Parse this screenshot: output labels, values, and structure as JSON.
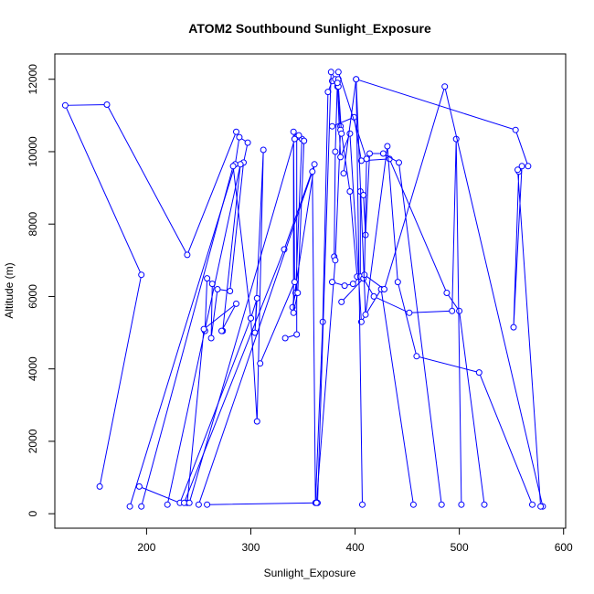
{
  "chart_data": {
    "type": "line",
    "title": "ATOM2 Southbound Sunlight_Exposure",
    "xlabel": "Sunlight_Exposure",
    "ylabel": "Altitude (m)",
    "xlim": [
      112,
      602
    ],
    "ylim": [
      -400,
      12700
    ],
    "x_ticks": [
      200,
      300,
      400,
      500,
      600
    ],
    "y_ticks": [
      0,
      2000,
      4000,
      6000,
      8000,
      10000,
      12000
    ],
    "x_tick_labels": [
      "200",
      "300",
      "400",
      "500",
      "600"
    ],
    "y_tick_labels": [
      "0",
      "2000",
      "4000",
      "6000",
      "8000",
      "10000",
      "12000"
    ],
    "series_color": "#0000ff",
    "marker": "open-circle",
    "grid": false,
    "series": [
      {
        "x": [
          155,
          195,
          122,
          162,
          239,
          286
        ],
        "y": [
          750,
          6600,
          11280,
          11300,
          7150,
          10550
        ]
      },
      {
        "x": [
          184,
          285,
          289,
          297,
          293,
          280,
          268,
          262,
          263,
          258,
          256
        ],
        "y": [
          200,
          9650,
          10400,
          10250,
          9700,
          6150,
          6200,
          4850,
          6350,
          6500,
          5050
        ]
      },
      {
        "x": [
          195,
          283,
          300,
          306,
          304,
          312,
          306,
          300,
          232,
          193
        ],
        "y": [
          200,
          9600,
          5400,
          5950,
          5000,
          10050,
          2550,
          5400,
          300,
          750
        ]
      },
      {
        "x": [
          220,
          290,
          273,
          272,
          286,
          255,
          239
        ],
        "y": [
          250,
          9650,
          5050,
          5050,
          5800,
          5100,
          300
        ]
      },
      {
        "x": [
          236,
          332,
          361,
          340,
          343,
          349,
          344,
          344,
          333
        ],
        "y": [
          300,
          7300,
          9650,
          5700,
          6100,
          10350,
          10400,
          4950,
          4850
        ]
      },
      {
        "x": [
          241,
          342,
          346,
          351,
          345,
          341,
          341,
          342,
          309
        ],
        "y": [
          300,
          10350,
          10450,
          10300,
          6100,
          5550,
          10550,
          6400,
          4150
        ]
      },
      {
        "x": [
          250,
          359,
          362,
          369,
          374,
          378,
          383,
          386,
          395,
          402
        ],
        "y": [
          250,
          9450,
          300,
          5300,
          11650,
          11950,
          11800,
          10700,
          8900,
          6550
        ]
      },
      {
        "x": [
          258,
          364,
          377,
          381,
          383,
          381,
          380
        ],
        "y": [
          250,
          300,
          12200,
          12000,
          11900,
          10000,
          7100
        ]
      },
      {
        "x": [
          363,
          381,
          386,
          387,
          384,
          384,
          383,
          386,
          395,
          406,
          425,
          456
        ],
        "y": [
          300,
          7000,
          10600,
          10500,
          11800,
          12000,
          11900,
          9850,
          10500,
          5300,
          6200,
          250
        ]
      },
      {
        "x": [
          378,
          399,
          406,
          433,
          488,
          500,
          524
        ],
        "y": [
          10700,
          10950,
          9750,
          9800,
          6100,
          5600,
          250
        ]
      },
      {
        "x": [
          378,
          390,
          398,
          405,
          405,
          408,
          410,
          414,
          427,
          442,
          483
        ],
        "y": [
          6400,
          6300,
          6350,
          6550,
          8900,
          8800,
          7700,
          9950,
          9950,
          9700,
          250
        ]
      },
      {
        "x": [
          387,
          408,
          418,
          452,
          493,
          497,
          502
        ],
        "y": [
          5850,
          6500,
          6000,
          5550,
          5600,
          10350,
          250
        ]
      },
      {
        "x": [
          384,
          411,
          409,
          428,
          486,
          580
        ],
        "y": [
          12200,
          9800,
          6600,
          6200,
          11800,
          200
        ]
      },
      {
        "x": [
          389,
          401,
          410,
          431,
          441,
          459,
          519,
          570
        ],
        "y": [
          9400,
          12000,
          5500,
          10150,
          6400,
          4350,
          3900,
          250
        ]
      },
      {
        "x": [
          407,
          401,
          554,
          566,
          560,
          552,
          557,
          556,
          578
        ],
        "y": [
          250,
          12000,
          10600,
          9600,
          9600,
          5150,
          9450,
          9500,
          200
        ]
      }
    ]
  }
}
